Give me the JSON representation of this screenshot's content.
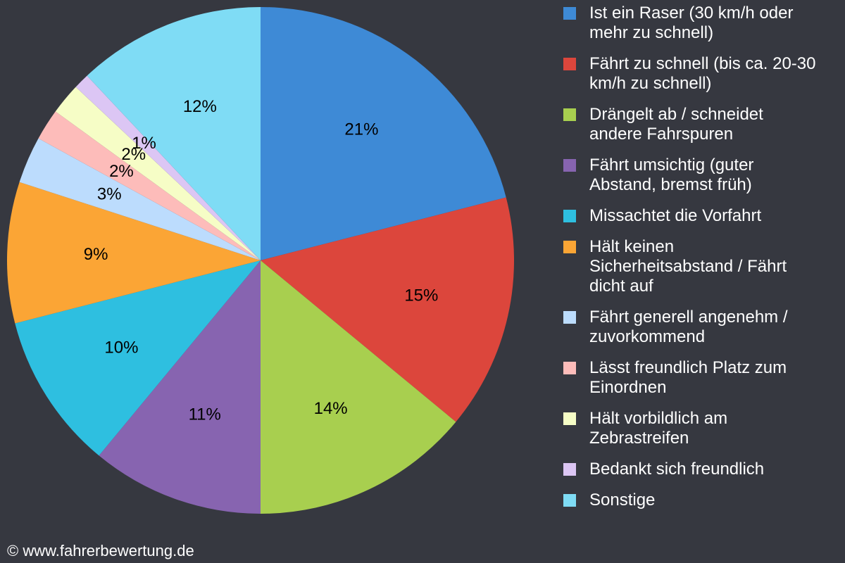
{
  "chart_data": {
    "type": "pie",
    "categories": [
      "Ist ein Raser (30 km/h oder mehr zu schnell)",
      "Fährt zu schnell (bis ca. 20-30 km/h zu schnell)",
      "Drängelt ab / schneidet andere Fahrspuren",
      "Fährt umsichtig (guter Abstand, bremst früh)",
      "Missachtet die Vorfahrt",
      "Hält keinen Sicherheitsabstand / Fährt dicht auf",
      "Fährt generell angenehm / zuvorkommend",
      "Lässt freundlich Platz zum Einordnen",
      "Hält vorbildlich am Zebrastreifen",
      "Bedankt sich freundlich",
      "Sonstige"
    ],
    "values": [
      21,
      15,
      14,
      11,
      10,
      9,
      3,
      2,
      2,
      1,
      12
    ],
    "value_labels": [
      "21%",
      "15%",
      "14%",
      "11%",
      "10%",
      "9%",
      "3%",
      "2%",
      "2%",
      "1%",
      "12%"
    ],
    "colors": [
      "#3e8ad6",
      "#dc463c",
      "#a8cf4f",
      "#8764b0",
      "#2ebfe0",
      "#fba535",
      "#bcdcfd",
      "#fdbcba",
      "#f6fdc6",
      "#dcc6f4",
      "#7fdcf5"
    ],
    "legend": "right",
    "footer": "© www.fahrerbewertung.de"
  }
}
